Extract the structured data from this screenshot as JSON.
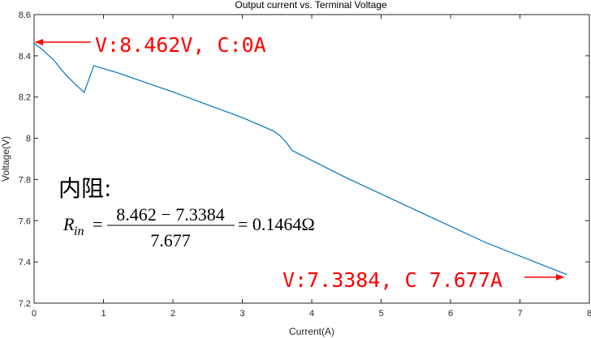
{
  "chart_data": {
    "type": "line",
    "title": "Output current vs. Terminal Voltage",
    "xlabel": "Current(A)",
    "ylabel": "Voltage(V)",
    "xlim": [
      0,
      8
    ],
    "ylim": [
      7.2,
      8.6
    ],
    "xticks": [
      "0",
      "1",
      "2",
      "3",
      "4",
      "5",
      "6",
      "7",
      "8"
    ],
    "yticks": [
      "7.2",
      "7.4",
      "7.6",
      "7.8",
      "8",
      "8.2",
      "8.4",
      "8.6"
    ],
    "grid": false,
    "series": [
      {
        "color": "#0072bd",
        "x": [
          0,
          0.12,
          0.28,
          0.45,
          0.6,
          0.72,
          0.86,
          1.2,
          2.0,
          3.0,
          3.45,
          3.55,
          3.62,
          3.72,
          4.5,
          5.5,
          6.5,
          7.677
        ],
        "y": [
          8.462,
          8.43,
          8.38,
          8.31,
          8.26,
          8.222,
          8.352,
          8.318,
          8.225,
          8.1,
          8.035,
          8.01,
          7.985,
          7.94,
          7.808,
          7.651,
          7.495,
          7.3384
        ]
      }
    ],
    "annotations": [
      {
        "text": "V:8.462V, C:0A",
        "color": "#ff0000",
        "arrow_to": [
          0,
          8.462
        ]
      },
      {
        "text": "V:7.3384, C 7.677A",
        "color": "#ff0000",
        "arrow_to": [
          7.677,
          7.3384
        ]
      }
    ]
  },
  "formula": {
    "heading": "内阻:",
    "lhs_symbol": "R",
    "lhs_sub": "in",
    "equals": "=",
    "numerator": "8.462 − 7.3384",
    "denominator": "7.677",
    "result": "= 0.1464Ω"
  }
}
